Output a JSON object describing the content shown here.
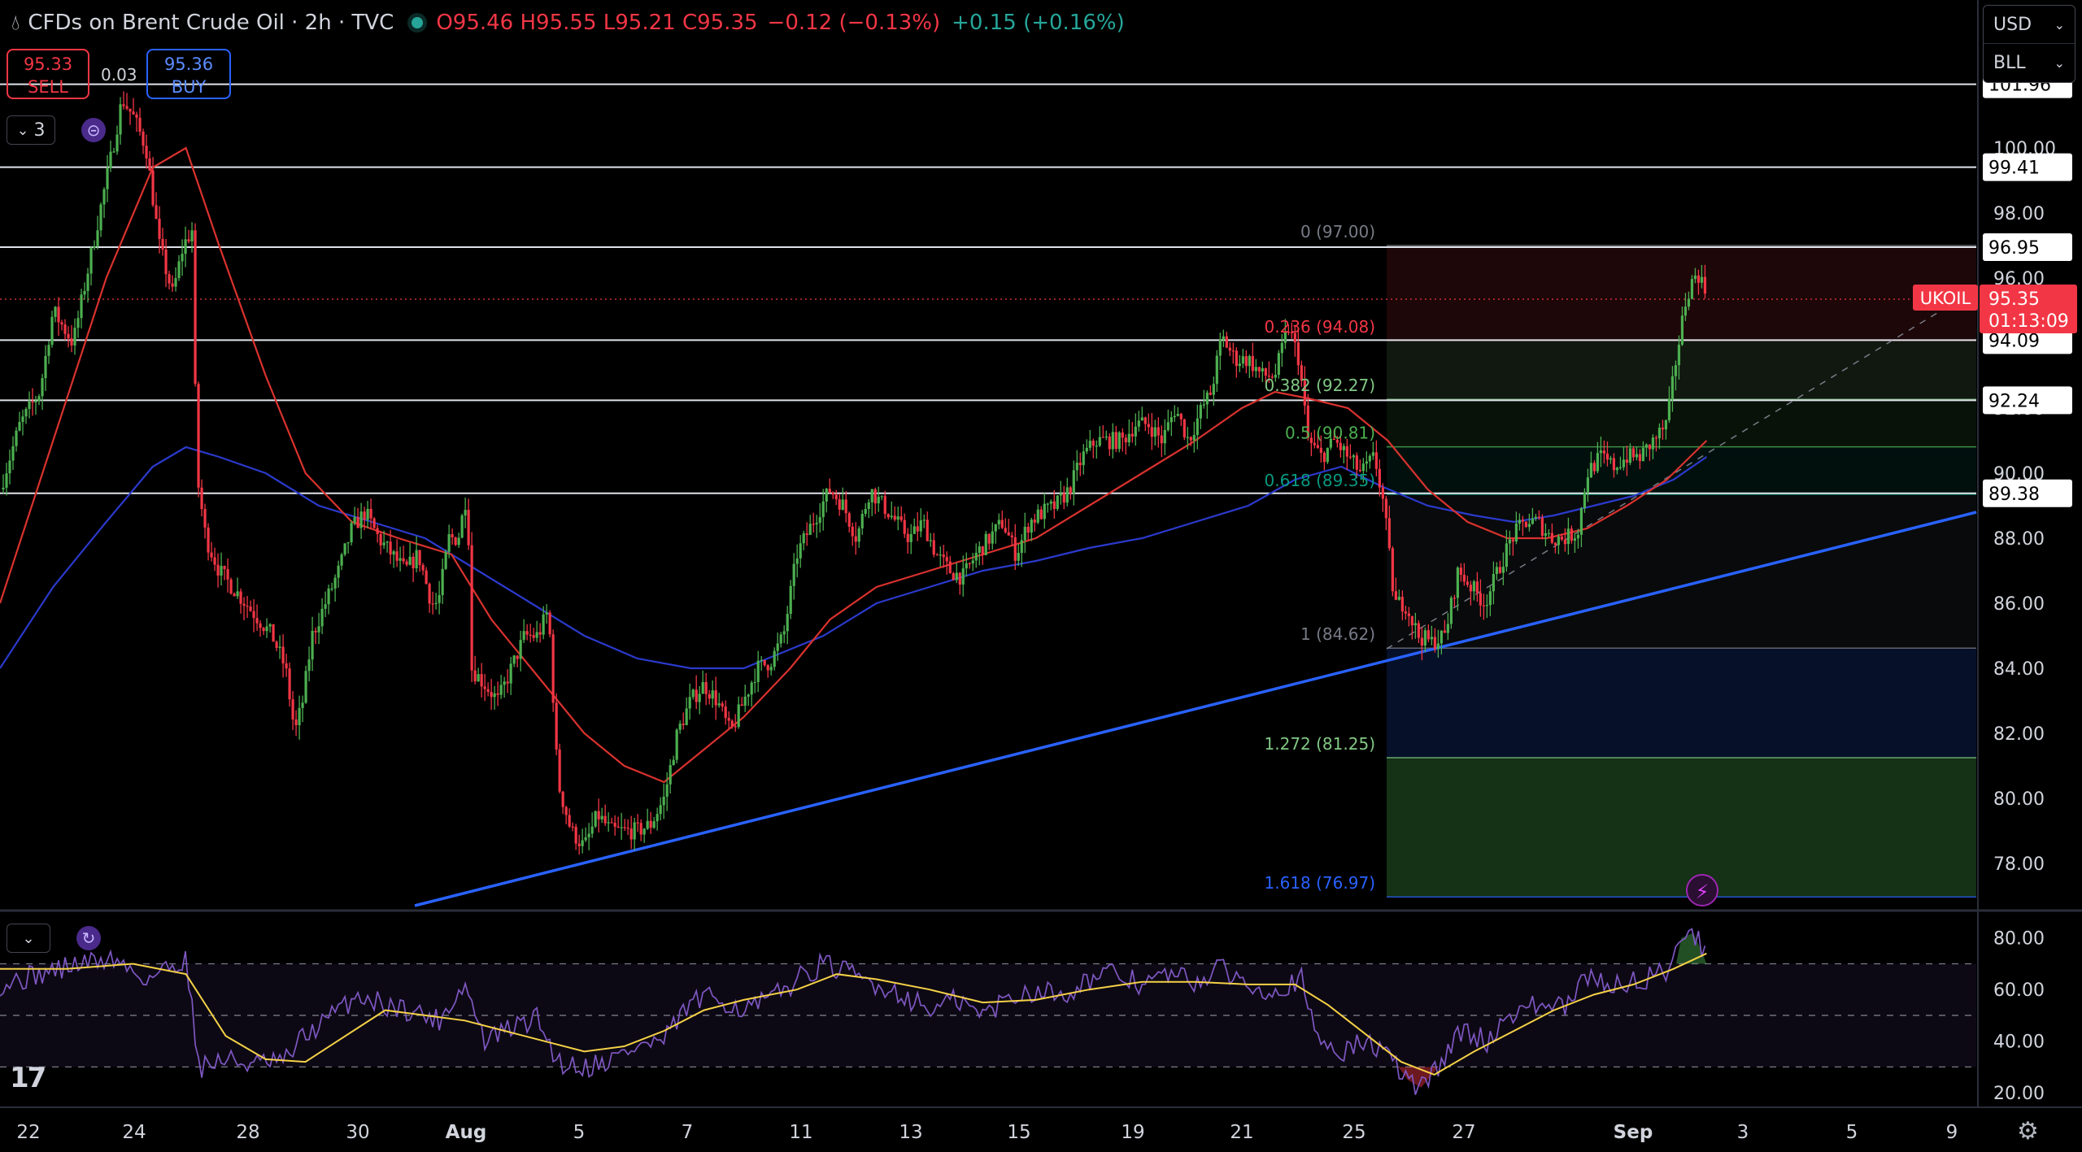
{
  "header": {
    "symbol_title": "CFDs on Brent Crude Oil · 2h · TVC",
    "open": "O95.46",
    "high": "H95.55",
    "low": "L95.21",
    "close": "C95.35",
    "change": "−0.12 (−0.13%)",
    "extra_change": "+0.15 (+0.16%)",
    "drop_icon": "drop-icon",
    "status_icon": "market-open-dot"
  },
  "trade": {
    "sell_price": "95.33",
    "sell_label": "SELL",
    "spread": "0.03",
    "buy_price": "95.36",
    "buy_label": "BUY"
  },
  "indicators_toggle": {
    "count": "3"
  },
  "currency_panel": {
    "currency": "USD",
    "unit": "BLL"
  },
  "price_axis": {
    "ticks": [
      "100.00",
      "98.00",
      "96.00",
      "94.00",
      "92.00",
      "90.00",
      "88.00",
      "86.00",
      "84.00",
      "82.00",
      "80.00",
      "78.00"
    ],
    "range": [
      76.6,
      103.3
    ]
  },
  "horizontal_levels": [
    "101.96",
    "99.41",
    "96.95",
    "94.09",
    "92.24",
    "89.38"
  ],
  "last_price": {
    "symbol": "UKOIL",
    "price": "95.35",
    "countdown": "01:13:09",
    "value": 95.35
  },
  "fibonacci": [
    {
      "label": "0 (97.00)",
      "value": 97.0,
      "color": "#787b86"
    },
    {
      "label": "0.236 (94.08)",
      "value": 94.08,
      "color": "#f23645"
    },
    {
      "label": "0.382 (92.27)",
      "value": 92.27,
      "color": "#81c784"
    },
    {
      "label": "0.5 (90.81)",
      "value": 90.81,
      "color": "#4caf50"
    },
    {
      "label": "0.618 (89.35)",
      "value": 89.35,
      "color": "#089981"
    },
    {
      "label": "1 (84.62)",
      "value": 84.62,
      "color": "#787b86"
    },
    {
      "label": "1.272 (81.25)",
      "value": 81.25,
      "color": "#81c784"
    },
    {
      "label": "1.618 (76.97)",
      "value": 76.97,
      "color": "#2962ff"
    }
  ],
  "rsi_axis": {
    "ticks": [
      "80.00",
      "60.00",
      "40.00",
      "20.00"
    ],
    "range": [
      15,
      90
    ],
    "bands": [
      70,
      50,
      30
    ]
  },
  "time_axis": {
    "labels": [
      "22",
      "24",
      "28",
      "30",
      "Aug",
      "5",
      "7",
      "11",
      "13",
      "15",
      "19",
      "21",
      "25",
      "27",
      "Sep",
      "3",
      "5",
      "9"
    ]
  },
  "colors": {
    "up": "#26a69a",
    "down": "#f23645",
    "candle_up": "#4caf50",
    "candle_down": "#f23645",
    "ma_fast": "#d9322e",
    "ma_slow": "#2b3acc",
    "trendline": "#2962ff",
    "rsi": "#7e57c2",
    "rsi_ma": "#f5d147"
  },
  "chart_data": {
    "type": "candlestick",
    "title": "CFDs on Brent Crude Oil · 2h · TVC",
    "ylim": [
      76.6,
      103.3
    ],
    "path_points": [
      [
        0,
        89.5
      ],
      [
        15,
        91.5
      ],
      [
        30,
        92.5
      ],
      [
        40,
        95
      ],
      [
        55,
        94
      ],
      [
        65,
        96
      ],
      [
        75,
        98
      ],
      [
        85,
        100
      ],
      [
        92,
        101.5
      ],
      [
        100,
        101
      ],
      [
        110,
        100
      ],
      [
        120,
        97
      ],
      [
        130,
        95.5
      ],
      [
        138,
        97
      ],
      [
        145,
        97.5
      ],
      [
        148,
        90
      ],
      [
        155,
        88
      ],
      [
        165,
        87
      ],
      [
        175,
        86.5
      ],
      [
        185,
        86
      ],
      [
        195,
        85.5
      ],
      [
        205,
        85
      ],
      [
        215,
        84
      ],
      [
        222,
        82
      ],
      [
        228,
        83
      ],
      [
        235,
        85
      ],
      [
        245,
        86
      ],
      [
        255,
        87
      ],
      [
        265,
        88.3
      ],
      [
        275,
        88.8
      ],
      [
        285,
        88
      ],
      [
        295,
        87.5
      ],
      [
        305,
        87
      ],
      [
        315,
        87.5
      ],
      [
        325,
        86
      ],
      [
        330,
        86
      ],
      [
        338,
        88
      ],
      [
        345,
        88
      ],
      [
        352,
        89.5
      ],
      [
        355,
        84
      ],
      [
        365,
        83.5
      ],
      [
        375,
        83
      ],
      [
        385,
        84
      ],
      [
        395,
        85
      ],
      [
        405,
        85
      ],
      [
        413,
        85.8
      ],
      [
        420,
        80.5
      ],
      [
        430,
        79
      ],
      [
        440,
        78.5
      ],
      [
        450,
        79.5
      ],
      [
        460,
        79
      ],
      [
        470,
        79
      ],
      [
        480,
        79
      ],
      [
        490,
        79.2
      ],
      [
        500,
        80
      ],
      [
        510,
        82
      ],
      [
        520,
        83
      ],
      [
        530,
        83.5
      ],
      [
        540,
        83
      ],
      [
        550,
        82
      ],
      [
        560,
        83
      ],
      [
        570,
        84
      ],
      [
        580,
        84.2
      ],
      [
        590,
        85
      ],
      [
        600,
        87.5
      ],
      [
        612,
        88.5
      ],
      [
        625,
        89.5
      ],
      [
        635,
        89
      ],
      [
        645,
        88
      ],
      [
        655,
        89.5
      ],
      [
        665,
        89
      ],
      [
        675,
        88.5
      ],
      [
        685,
        88
      ],
      [
        695,
        88.5
      ],
      [
        705,
        87.5
      ],
      [
        715,
        87
      ],
      [
        725,
        86.8
      ],
      [
        735,
        87.5
      ],
      [
        745,
        88
      ],
      [
        755,
        88.5
      ],
      [
        765,
        87.5
      ],
      [
        775,
        88.5
      ],
      [
        785,
        88.8
      ],
      [
        795,
        89
      ],
      [
        805,
        89.5
      ],
      [
        815,
        90.5
      ],
      [
        825,
        91
      ],
      [
        835,
        91
      ],
      [
        845,
        91
      ],
      [
        855,
        91.5
      ],
      [
        865,
        91.5
      ],
      [
        875,
        91
      ],
      [
        885,
        92
      ],
      [
        895,
        91
      ],
      [
        905,
        92
      ],
      [
        912,
        92.5
      ],
      [
        920,
        94.2
      ],
      [
        930,
        93.5
      ],
      [
        940,
        93.5
      ],
      [
        950,
        93
      ],
      [
        960,
        93
      ],
      [
        970,
        94.5
      ],
      [
        978,
        93.5
      ],
      [
        985,
        91
      ],
      [
        995,
        90.5
      ],
      [
        1005,
        91
      ],
      [
        1015,
        90.5
      ],
      [
        1025,
        90
      ],
      [
        1035,
        90.5
      ],
      [
        1042,
        89
      ],
      [
        1050,
        86
      ],
      [
        1058,
        86
      ],
      [
        1068,
        85
      ],
      [
        1078,
        84.8
      ],
      [
        1088,
        85
      ],
      [
        1098,
        87
      ],
      [
        1108,
        86.5
      ],
      [
        1118,
        86
      ],
      [
        1128,
        87
      ],
      [
        1138,
        88
      ],
      [
        1148,
        88.5
      ],
      [
        1158,
        88.5
      ],
      [
        1168,
        88
      ],
      [
        1178,
        88
      ],
      [
        1188,
        88.2
      ],
      [
        1195,
        90
      ],
      [
        1205,
        90.5
      ],
      [
        1215,
        90.2
      ],
      [
        1225,
        90.5
      ],
      [
        1235,
        90.5
      ],
      [
        1245,
        91
      ],
      [
        1255,
        91.5
      ],
      [
        1262,
        93.5
      ],
      [
        1270,
        95.5
      ],
      [
        1278,
        96.2
      ],
      [
        1285,
        95.5
      ]
    ],
    "ma_fast_points": [
      [
        0,
        86
      ],
      [
        40,
        91
      ],
      [
        80,
        96
      ],
      [
        115,
        99.4
      ],
      [
        140,
        100
      ],
      [
        165,
        97
      ],
      [
        200,
        93
      ],
      [
        230,
        90
      ],
      [
        265,
        88.5
      ],
      [
        300,
        88
      ],
      [
        340,
        87.5
      ],
      [
        370,
        85.5
      ],
      [
        400,
        84
      ],
      [
        440,
        82
      ],
      [
        470,
        81
      ],
      [
        500,
        80.5
      ],
      [
        530,
        81.5
      ],
      [
        560,
        82.5
      ],
      [
        595,
        84
      ],
      [
        625,
        85.5
      ],
      [
        660,
        86.5
      ],
      [
        700,
        87
      ],
      [
        740,
        87.5
      ],
      [
        780,
        88
      ],
      [
        820,
        89
      ],
      [
        860,
        90
      ],
      [
        900,
        91
      ],
      [
        935,
        92
      ],
      [
        960,
        92.5
      ],
      [
        985,
        92.3
      ],
      [
        1015,
        92
      ],
      [
        1045,
        91
      ],
      [
        1075,
        89.5
      ],
      [
        1105,
        88.5
      ],
      [
        1135,
        88
      ],
      [
        1165,
        88
      ],
      [
        1195,
        88.3
      ],
      [
        1225,
        89
      ],
      [
        1255,
        89.8
      ],
      [
        1285,
        91
      ]
    ],
    "ma_slow_points": [
      [
        0,
        84
      ],
      [
        40,
        86.5
      ],
      [
        80,
        88.5
      ],
      [
        115,
        90.2
      ],
      [
        140,
        90.8
      ],
      [
        165,
        90.5
      ],
      [
        200,
        90
      ],
      [
        240,
        89
      ],
      [
        280,
        88.5
      ],
      [
        320,
        88
      ],
      [
        360,
        87
      ],
      [
        400,
        86
      ],
      [
        440,
        85
      ],
      [
        480,
        84.3
      ],
      [
        520,
        84
      ],
      [
        560,
        84
      ],
      [
        590,
        84.5
      ],
      [
        620,
        85
      ],
      [
        660,
        86
      ],
      [
        700,
        86.5
      ],
      [
        740,
        87
      ],
      [
        780,
        87.3
      ],
      [
        820,
        87.7
      ],
      [
        860,
        88
      ],
      [
        900,
        88.5
      ],
      [
        940,
        89
      ],
      [
        975,
        89.8
      ],
      [
        1010,
        90.2
      ],
      [
        1040,
        89.6
      ],
      [
        1075,
        89
      ],
      [
        1110,
        88.7
      ],
      [
        1140,
        88.5
      ],
      [
        1170,
        88.7
      ],
      [
        1200,
        89
      ],
      [
        1230,
        89.3
      ],
      [
        1260,
        89.8
      ],
      [
        1285,
        90.5
      ]
    ],
    "trendline": [
      [
        510,
        76.7
      ],
      [
        2430,
        88.8
      ]
    ],
    "dashed_projection": [
      [
        1705,
        84.6
      ],
      [
        2400,
        95.2
      ]
    ],
    "fib_range_x": [
      1705,
      2430
    ],
    "rsi_points": [
      [
        0,
        62
      ],
      [
        30,
        66
      ],
      [
        60,
        70
      ],
      [
        85,
        72
      ],
      [
        110,
        64
      ],
      [
        140,
        72
      ],
      [
        150,
        30
      ],
      [
        170,
        33
      ],
      [
        190,
        31
      ],
      [
        215,
        32
      ],
      [
        225,
        40
      ],
      [
        245,
        48
      ],
      [
        270,
        58
      ],
      [
        290,
        54
      ],
      [
        310,
        52
      ],
      [
        330,
        48
      ],
      [
        350,
        62
      ],
      [
        365,
        40
      ],
      [
        385,
        45
      ],
      [
        405,
        49
      ],
      [
        420,
        32
      ],
      [
        440,
        30
      ],
      [
        460,
        33
      ],
      [
        480,
        38
      ],
      [
        500,
        40
      ],
      [
        520,
        55
      ],
      [
        540,
        57
      ],
      [
        560,
        52
      ],
      [
        580,
        56
      ],
      [
        600,
        64
      ],
      [
        620,
        70
      ],
      [
        640,
        66
      ],
      [
        660,
        62
      ],
      [
        680,
        58
      ],
      [
        700,
        52
      ],
      [
        720,
        56
      ],
      [
        740,
        50
      ],
      [
        760,
        57
      ],
      [
        780,
        60
      ],
      [
        800,
        58
      ],
      [
        820,
        64
      ],
      [
        840,
        66
      ],
      [
        860,
        62
      ],
      [
        880,
        66
      ],
      [
        900,
        63
      ],
      [
        920,
        68
      ],
      [
        940,
        62
      ],
      [
        960,
        60
      ],
      [
        980,
        64
      ],
      [
        990,
        42
      ],
      [
        1010,
        36
      ],
      [
        1030,
        40
      ],
      [
        1045,
        34
      ],
      [
        1060,
        25
      ],
      [
        1070,
        22
      ],
      [
        1080,
        28
      ],
      [
        1100,
        44
      ],
      [
        1120,
        40
      ],
      [
        1140,
        52
      ],
      [
        1160,
        54
      ],
      [
        1180,
        53
      ],
      [
        1195,
        65
      ],
      [
        1215,
        62
      ],
      [
        1235,
        63
      ],
      [
        1255,
        68
      ],
      [
        1265,
        80
      ],
      [
        1275,
        82
      ],
      [
        1285,
        74
      ]
    ],
    "rsi_ma_points": [
      [
        0,
        68
      ],
      [
        50,
        68
      ],
      [
        100,
        70
      ],
      [
        140,
        66
      ],
      [
        170,
        42
      ],
      [
        200,
        33
      ],
      [
        230,
        32
      ],
      [
        260,
        42
      ],
      [
        290,
        52
      ],
      [
        320,
        50
      ],
      [
        350,
        48
      ],
      [
        380,
        44
      ],
      [
        410,
        40
      ],
      [
        440,
        36
      ],
      [
        470,
        38
      ],
      [
        500,
        44
      ],
      [
        530,
        52
      ],
      [
        560,
        56
      ],
      [
        600,
        60
      ],
      [
        630,
        66
      ],
      [
        660,
        64
      ],
      [
        700,
        60
      ],
      [
        740,
        55
      ],
      [
        780,
        56
      ],
      [
        820,
        60
      ],
      [
        860,
        63
      ],
      [
        900,
        63
      ],
      [
        940,
        62
      ],
      [
        975,
        62
      ],
      [
        1000,
        54
      ],
      [
        1030,
        42
      ],
      [
        1055,
        32
      ],
      [
        1080,
        27
      ],
      [
        1110,
        36
      ],
      [
        1140,
        44
      ],
      [
        1170,
        52
      ],
      [
        1200,
        58
      ],
      [
        1230,
        62
      ],
      [
        1260,
        68
      ],
      [
        1285,
        74
      ]
    ]
  }
}
